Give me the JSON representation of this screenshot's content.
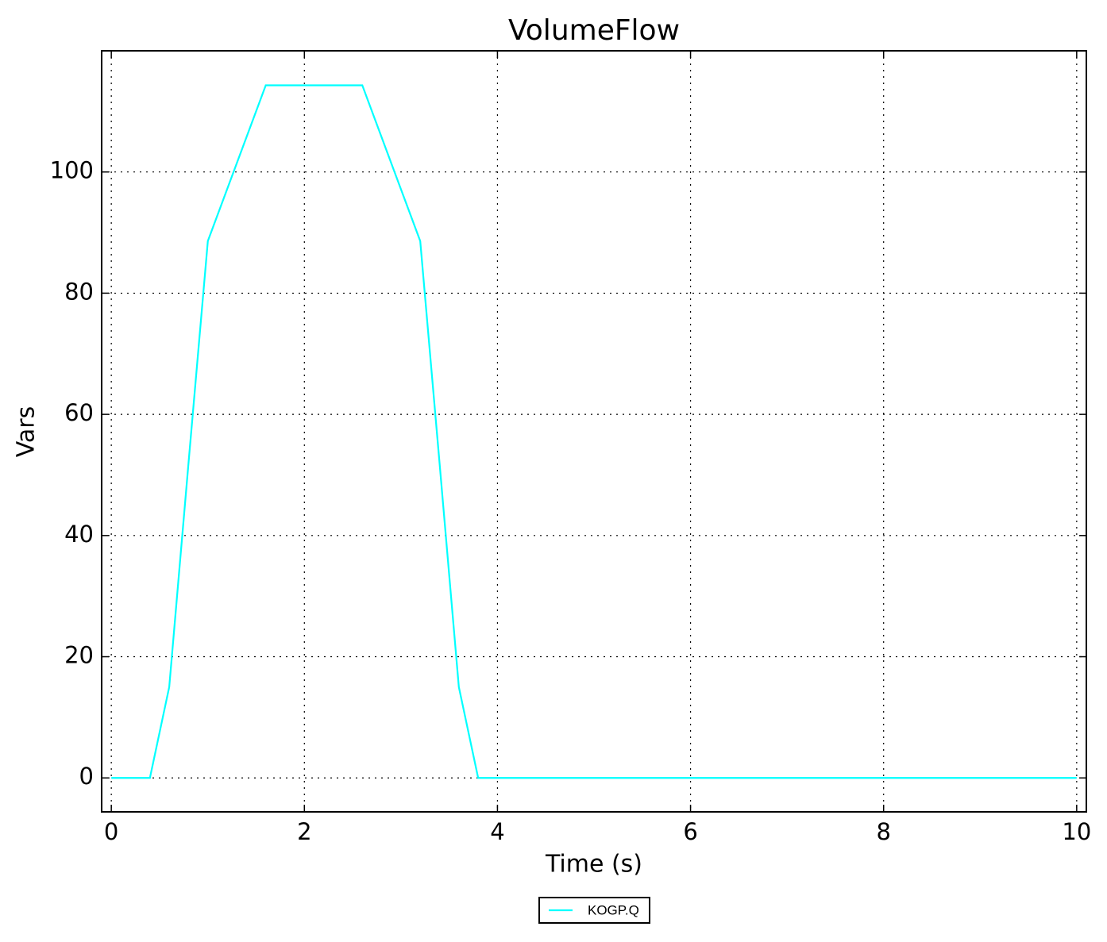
{
  "chart_data": {
    "type": "line",
    "title": "VolumeFlow",
    "xlabel": "Time (s)",
    "ylabel": "Vars",
    "x": [
      0,
      0.4,
      0.6,
      0.8,
      1.0,
      1.6,
      2.6,
      3.2,
      3.4,
      3.6,
      3.8,
      10
    ],
    "series": [
      {
        "name": "KOGP.Q",
        "color": "#00ffff",
        "values": [
          0,
          0,
          15,
          52,
          88.6,
          114.3,
          114.3,
          88.6,
          52,
          15,
          0,
          0
        ]
      }
    ],
    "xlim": [
      -0.1,
      10.1
    ],
    "xticks": [
      0,
      2,
      4,
      6,
      8,
      10
    ],
    "ylim": [
      -5.6,
      120
    ],
    "yticks": [
      0,
      20,
      40,
      60,
      80,
      100
    ],
    "grid": true,
    "legend": "bottom"
  }
}
